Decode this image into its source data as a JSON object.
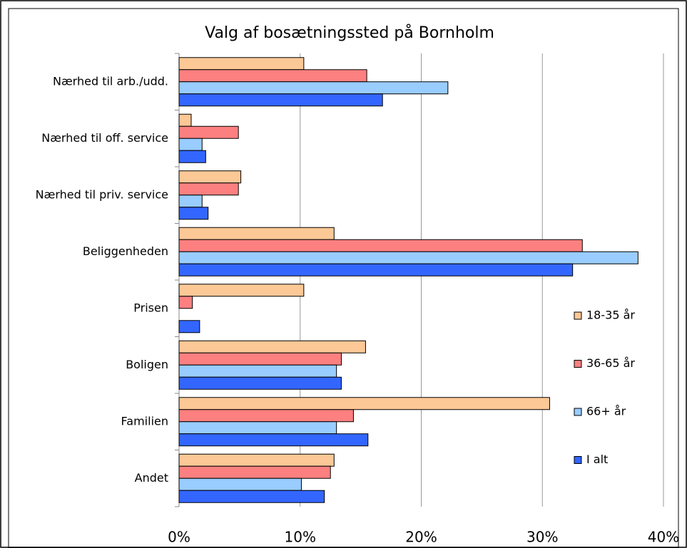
{
  "chart_data": {
    "type": "barh",
    "title": "Valg af bosætningssted på Bornholm",
    "categories": [
      "Nærhed til arb./udd.",
      "Nærhed til off. service",
      "Nærhed til priv. service",
      "Beliggenheden",
      "Prisen",
      "Boligen",
      "Familien",
      "Andet"
    ],
    "series": [
      {
        "name": "18-35 år",
        "color": "#fcc896",
        "values": [
          10.3,
          1.0,
          5.1,
          12.8,
          10.3,
          15.4,
          30.6,
          12.8
        ]
      },
      {
        "name": "36-65 år",
        "color": "#fc8080",
        "values": [
          15.5,
          4.9,
          4.9,
          33.3,
          1.1,
          13.4,
          14.4,
          12.5
        ]
      },
      {
        "name": "66+ år",
        "color": "#99ccff",
        "values": [
          22.2,
          1.9,
          1.9,
          37.9,
          0,
          13.0,
          13.0,
          10.1
        ]
      },
      {
        "name": "I alt",
        "color": "#3366ff",
        "values": [
          16.8,
          2.2,
          2.4,
          32.5,
          1.7,
          13.4,
          15.6,
          12.0
        ]
      }
    ],
    "xlim": [
      0,
      40
    ],
    "xticks": [
      {
        "value": 0,
        "label": "0%"
      },
      {
        "value": 10,
        "label": "10%"
      },
      {
        "value": 20,
        "label": "20%"
      },
      {
        "value": 30,
        "label": "30%"
      },
      {
        "value": 40,
        "label": "40%"
      }
    ],
    "grid": true,
    "legend": "right"
  }
}
